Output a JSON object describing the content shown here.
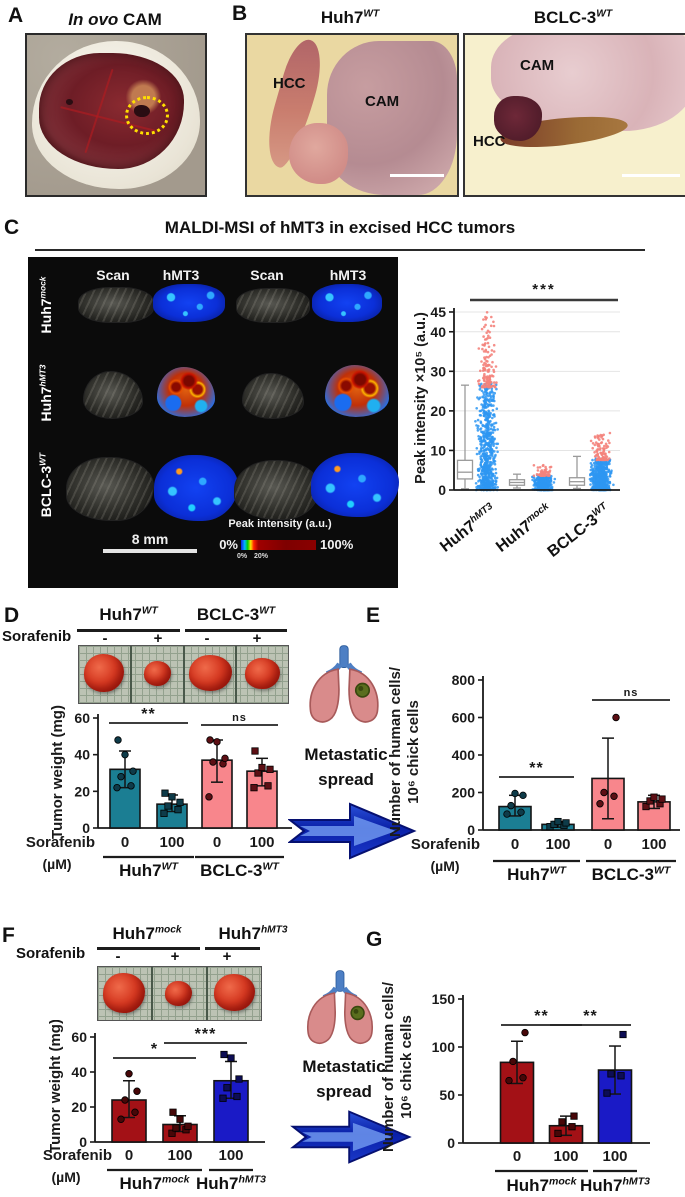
{
  "colors": {
    "teal": "#1b7e93",
    "salmon": "#f8868c",
    "dark_red": "#a31116",
    "blue": "#1a1ac6",
    "scatter_blue": "#2e97f2",
    "scatter_red": "#f4837c",
    "box_stroke": "#9a9a9a",
    "axis": "#1a1a1a"
  },
  "panels": {
    "A": {
      "letter": "A",
      "title_italic": "In ovo",
      "title_rest": " CAM"
    },
    "B": {
      "letter": "B",
      "left": {
        "title": {
          "base": "Huh7",
          "sup": "WT"
        },
        "label_hcc": "HCC",
        "label_cam": "CAM"
      },
      "right": {
        "title": {
          "base": "BCLC-3",
          "sup": "WT"
        },
        "label_cam": "CAM",
        "label_hcc": "HCC"
      }
    },
    "C": {
      "letter": "C",
      "title": "MALDI-MSI of hMT3 in excised HCC tumors",
      "maldi": {
        "col_headers": [
          "Scan",
          "hMT3",
          "Scan",
          "hMT3"
        ],
        "row_labels": [
          {
            "base": "Huh7",
            "sup": "mock"
          },
          {
            "base": "Huh7",
            "sup": "hMT3"
          },
          {
            "base": "BCLC-3",
            "sup": "WT"
          }
        ],
        "scale_bar": "8 mm",
        "colorbar_title": "Peak intensity (a.u.)",
        "colorbar_min": "0%",
        "colorbar_max": "100%",
        "colorbar_tick0": "0%",
        "colorbar_tick20": "20%"
      }
    },
    "D": {
      "letter": "D",
      "drug_label": "Sorafenib",
      "signs": [
        "-",
        "+",
        "-",
        "+"
      ],
      "group1": {
        "base": "Huh7",
        "sup": "WT"
      },
      "group2": {
        "base": "BCLC-3",
        "sup": "WT"
      }
    },
    "E": {
      "letter": "E"
    },
    "F": {
      "letter": "F",
      "drug_label": "Sorafenib",
      "signs": [
        "-",
        "+",
        "+"
      ],
      "group1": {
        "base": "Huh7",
        "sup": "mock"
      },
      "group2": {
        "base": "Huh7",
        "sup": "hMT3"
      }
    },
    "G": {
      "letter": "G"
    },
    "metastatic": {
      "line1": "Metastatic",
      "line2": "spread"
    }
  },
  "chart_data": [
    {
      "id": "C",
      "type": "box-scatter",
      "ylabel": "Peak intensity ×10⁵ (a.u.)",
      "ylim": [
        0,
        47
      ],
      "yticks": [
        0,
        10,
        20,
        30,
        40,
        45
      ],
      "categories": [
        {
          "base": "Huh7",
          "sup": "hMT3"
        },
        {
          "base": "Huh7",
          "sup": "mock"
        },
        {
          "base": "BCLC-3",
          "sup": "WT"
        }
      ],
      "boxes": [
        {
          "lo": 0.3,
          "q1": 2.8,
          "med": 4.5,
          "q3": 7.5,
          "hi": 26.5
        },
        {
          "lo": 0.5,
          "q1": 1.2,
          "med": 1.9,
          "q3": 2.6,
          "hi": 4.0
        },
        {
          "lo": 0.4,
          "q1": 1.2,
          "med": 2.1,
          "q3": 3.1,
          "hi": 8.5
        }
      ],
      "scatter": [
        {
          "blue_max": 27,
          "red_min": 26,
          "red_max": 45,
          "blue_n": 700,
          "red_n": 130
        },
        {
          "blue_max": 3.8,
          "red_min": 3.6,
          "red_max": 6.3,
          "blue_n": 400,
          "red_n": 60
        },
        {
          "blue_max": 8.0,
          "red_min": 7.6,
          "red_max": 14.5,
          "blue_n": 600,
          "red_n": 110
        }
      ],
      "significance": [
        {
          "label": "***",
          "span": "all"
        }
      ],
      "legend_position": "none",
      "grid": true
    },
    {
      "id": "D",
      "type": "bar",
      "ylabel": "Tumor weight (mg)",
      "ylim": [
        0,
        60
      ],
      "yticks": [
        0,
        20,
        40,
        60
      ],
      "xlabel": "Sorafenib",
      "xunit": "(µM)",
      "bars": [
        {
          "tick": "0",
          "value": 32,
          "err": [
            22,
            42
          ],
          "points": [
            22,
            23,
            28,
            31,
            40,
            48
          ],
          "color": "teal",
          "point_color": "#0e3b49",
          "shape": "circle"
        },
        {
          "tick": "100",
          "value": 13,
          "err": [
            9,
            18
          ],
          "points": [
            8,
            10,
            12,
            14,
            17,
            19
          ],
          "color": "teal",
          "point_color": "#0e3b49",
          "shape": "square"
        },
        {
          "tick": "0",
          "value": 37,
          "err": [
            25,
            48
          ],
          "points": [
            17,
            35,
            36,
            38,
            47,
            48
          ],
          "color": "salmon",
          "point_color": "#5d0f14",
          "shape": "circle"
        },
        {
          "tick": "100",
          "value": 31,
          "err": [
            23,
            38
          ],
          "points": [
            22,
            23,
            30,
            32,
            33,
            42
          ],
          "color": "salmon",
          "point_color": "#5d0f14",
          "shape": "square"
        }
      ],
      "groups": [
        {
          "label": {
            "base": "Huh7",
            "sup": "WT"
          },
          "bars": [
            0,
            1
          ]
        },
        {
          "label": {
            "base": "BCLC-3",
            "sup": "WT"
          },
          "bars": [
            2,
            3
          ]
        }
      ],
      "significance": [
        {
          "label": "**",
          "bars": [
            0,
            1
          ]
        },
        {
          "label": "ns",
          "bars": [
            2,
            3
          ]
        }
      ]
    },
    {
      "id": "E",
      "type": "bar",
      "ylabel": [
        "Number of human cells/",
        "10⁶ chick cells"
      ],
      "ylim": [
        0,
        800
      ],
      "yticks": [
        0,
        200,
        400,
        600,
        800
      ],
      "xlabel": "Sorafenib",
      "xunit": "(µM)",
      "bars": [
        {
          "tick": "0",
          "value": 125,
          "err": [
            75,
            185
          ],
          "points": [
            85,
            95,
            130,
            185,
            195
          ],
          "color": "teal",
          "point_color": "#0e3b49",
          "shape": "circle"
        },
        {
          "tick": "100",
          "value": 30,
          "err": [
            15,
            45
          ],
          "points": [
            18,
            25,
            30,
            38,
            45
          ],
          "color": "teal",
          "point_color": "#0e3b49",
          "shape": "square"
        },
        {
          "tick": "0",
          "value": 275,
          "err": [
            60,
            490
          ],
          "points": [
            140,
            180,
            200,
            600
          ],
          "color": "salmon",
          "point_color": "#5d0f14",
          "shape": "circle"
        },
        {
          "tick": "100",
          "value": 150,
          "err": [
            115,
            185
          ],
          "points": [
            125,
            140,
            155,
            165,
            175
          ],
          "color": "salmon",
          "point_color": "#5d0f14",
          "shape": "square"
        }
      ],
      "groups": [
        {
          "label": {
            "base": "Huh7",
            "sup": "WT"
          },
          "bars": [
            0,
            1
          ]
        },
        {
          "label": {
            "base": "BCLC-3",
            "sup": "WT"
          },
          "bars": [
            2,
            3
          ]
        }
      ],
      "significance": [
        {
          "label": "**",
          "bars": [
            0,
            1
          ]
        },
        {
          "label": "ns",
          "bars": [
            2,
            3
          ]
        }
      ]
    },
    {
      "id": "F",
      "type": "bar",
      "ylabel": "Tumor weight (mg)",
      "ylim": [
        0,
        60
      ],
      "yticks": [
        0,
        20,
        40,
        60
      ],
      "xlabel": "Sorafenib",
      "xunit": "(µM)",
      "bars": [
        {
          "tick": "0",
          "value": 24,
          "err": [
            14,
            35
          ],
          "points": [
            13,
            17,
            24,
            29,
            39
          ],
          "color": "dark_red",
          "point_color": "#470708",
          "shape": "circle"
        },
        {
          "tick": "100",
          "value": 10,
          "err": [
            6,
            15
          ],
          "points": [
            5,
            7,
            8,
            9,
            13,
            17
          ],
          "color": "dark_red",
          "point_color": "#470708",
          "shape": "square"
        },
        {
          "tick": "100",
          "value": 35,
          "err": [
            25,
            46
          ],
          "points": [
            25,
            26,
            31,
            36,
            48,
            50
          ],
          "color": "blue",
          "point_color": "#0d0d55",
          "shape": "square"
        }
      ],
      "groups": [
        {
          "label": {
            "base": "Huh7",
            "sup": "mock"
          },
          "bars": [
            0,
            1
          ]
        },
        {
          "label": {
            "base": "Huh7",
            "sup": "hMT3"
          },
          "bars": [
            2,
            2
          ]
        }
      ],
      "significance": [
        {
          "label": "*",
          "bars": [
            0,
            1
          ]
        },
        {
          "label": "***",
          "bars": [
            1,
            2
          ]
        }
      ]
    },
    {
      "id": "G",
      "type": "bar",
      "ylabel": [
        "Number of human cells/",
        "10⁶ chick cells"
      ],
      "ylim": [
        0,
        150
      ],
      "yticks": [
        0,
        50,
        100,
        150
      ],
      "bars": [
        {
          "tick": "0",
          "value": 84,
          "err": [
            62,
            106
          ],
          "points": [
            65,
            68,
            85,
            115
          ],
          "color": "dark_red",
          "point_color": "#470708",
          "shape": "circle"
        },
        {
          "tick": "100",
          "value": 18,
          "err": [
            8,
            28
          ],
          "points": [
            10,
            17,
            22,
            28
          ],
          "color": "dark_red",
          "point_color": "#470708",
          "shape": "square"
        },
        {
          "tick": "100",
          "value": 76,
          "err": [
            51,
            101
          ],
          "points": [
            52,
            70,
            72,
            113
          ],
          "color": "blue",
          "point_color": "#0d0d55",
          "shape": "square"
        }
      ],
      "groups": [
        {
          "label": {
            "base": "Huh7",
            "sup": "mock"
          },
          "bars": [
            0,
            1
          ]
        },
        {
          "label": {
            "base": "Huh7",
            "sup": "hMT3"
          },
          "bars": [
            2,
            2
          ]
        }
      ],
      "significance": [
        {
          "label": "**",
          "bars": [
            0,
            1
          ]
        },
        {
          "label": "**",
          "bars": [
            1,
            2
          ]
        }
      ]
    }
  ]
}
